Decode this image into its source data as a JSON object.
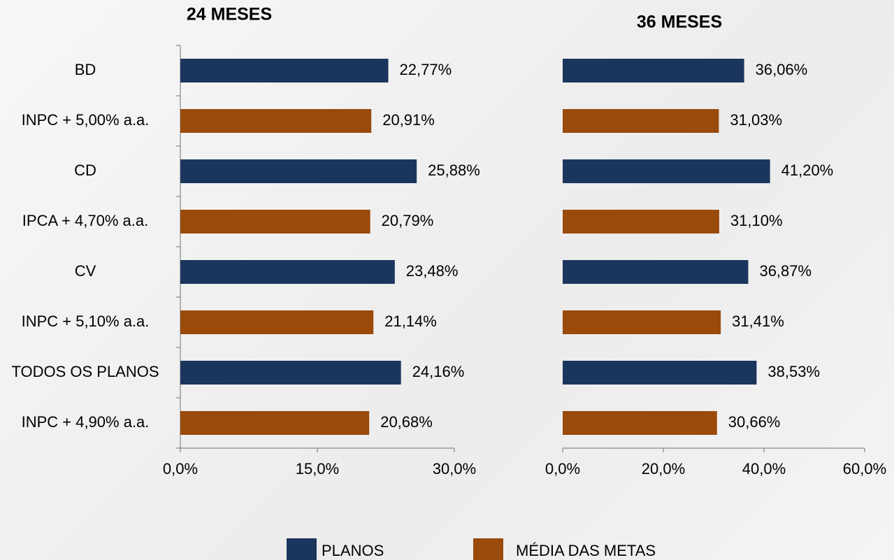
{
  "chart_data": [
    {
      "type": "bar",
      "orientation": "horizontal",
      "title": "24 MESES",
      "categories": [
        "BD",
        "INPC + 5,00% a.a.",
        "CD",
        "IPCA + 4,70% a.a.",
        "CV",
        "INPC + 5,10% a.a.",
        "TODOS OS PLANOS",
        "INPC + 4,90% a.a."
      ],
      "series": [
        {
          "name": "PLANOS",
          "color": "#1b365d",
          "values": [
            22.77,
            null,
            25.88,
            null,
            23.48,
            null,
            24.16,
            null
          ],
          "value_labels": [
            "22,77%",
            null,
            "25,88%",
            null,
            "23,48%",
            null,
            "24,16%",
            null
          ]
        },
        {
          "name": "MÉDIA DAS METAS",
          "color": "#9a4a0a",
          "values": [
            null,
            20.91,
            null,
            20.79,
            null,
            21.14,
            null,
            20.68
          ],
          "value_labels": [
            null,
            "20,91%",
            null,
            "20,79%",
            null,
            "21,14%",
            null,
            "20,68%"
          ]
        }
      ],
      "xlim": [
        0,
        30
      ],
      "xticks": [
        {
          "value": 0,
          "label": "0,0%"
        },
        {
          "value": 15,
          "label": "15,0%"
        },
        {
          "value": 30,
          "label": "30,0%"
        }
      ]
    },
    {
      "type": "bar",
      "orientation": "horizontal",
      "title": "36 MESES",
      "series": [
        {
          "name": "PLANOS",
          "color": "#1b365d",
          "values": [
            36.06,
            null,
            41.2,
            null,
            36.87,
            null,
            38.53,
            null
          ],
          "value_labels": [
            "36,06%",
            null,
            "41,20%",
            null,
            "36,87%",
            null,
            "38,53%",
            null
          ]
        },
        {
          "name": "MÉDIA DAS METAS",
          "color": "#9a4a0a",
          "values": [
            null,
            31.03,
            null,
            31.1,
            null,
            31.41,
            null,
            30.66
          ],
          "value_labels": [
            null,
            "31,03%",
            null,
            "31,10%",
            null,
            "31,41%",
            null,
            "30,66%"
          ]
        }
      ],
      "xlim": [
        0,
        60
      ],
      "xticks": [
        {
          "value": 0,
          "label": "0,0%"
        },
        {
          "value": 20,
          "label": "20,0%"
        },
        {
          "value": 40,
          "label": "40,0%"
        },
        {
          "value": 60,
          "label": "60,0%"
        }
      ]
    }
  ]
}
